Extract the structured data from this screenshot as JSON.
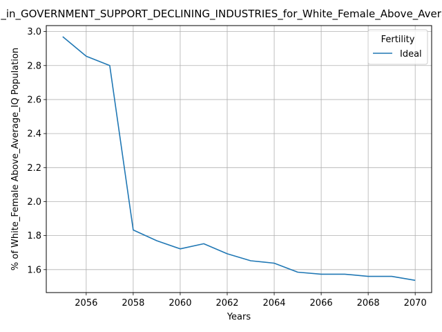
{
  "chart_data": {
    "type": "line",
    "title": "_in_GOVERNMENT_SUPPORT_DECLINING_INDUSTRIES_for_White_Female_Above_Average_IQ",
    "xlabel": "Years",
    "ylabel": "% of White_Female Above_Average_IQ Population",
    "xlim": [
      2054.3,
      2070.7
    ],
    "ylim": [
      1.465,
      3.035
    ],
    "xticks": [
      2056,
      2058,
      2060,
      2062,
      2064,
      2066,
      2068,
      2070
    ],
    "yticks": [
      1.6,
      1.8,
      2.0,
      2.2,
      2.4,
      2.6,
      2.8,
      3.0
    ],
    "grid": true,
    "legend": {
      "title": "Fertility",
      "placement": "top-right"
    },
    "series": [
      {
        "name": "Ideal",
        "color": "#1f77b4",
        "x": [
          2055,
          2056,
          2057,
          2058,
          2059,
          2060,
          2061,
          2062,
          2063,
          2064,
          2065,
          2066,
          2067,
          2068,
          2069,
          2070
        ],
        "values": [
          2.97,
          2.855,
          2.8,
          1.833,
          1.77,
          1.722,
          1.752,
          1.693,
          1.652,
          1.638,
          1.585,
          1.573,
          1.573,
          1.56,
          1.56,
          1.537
        ]
      }
    ]
  }
}
